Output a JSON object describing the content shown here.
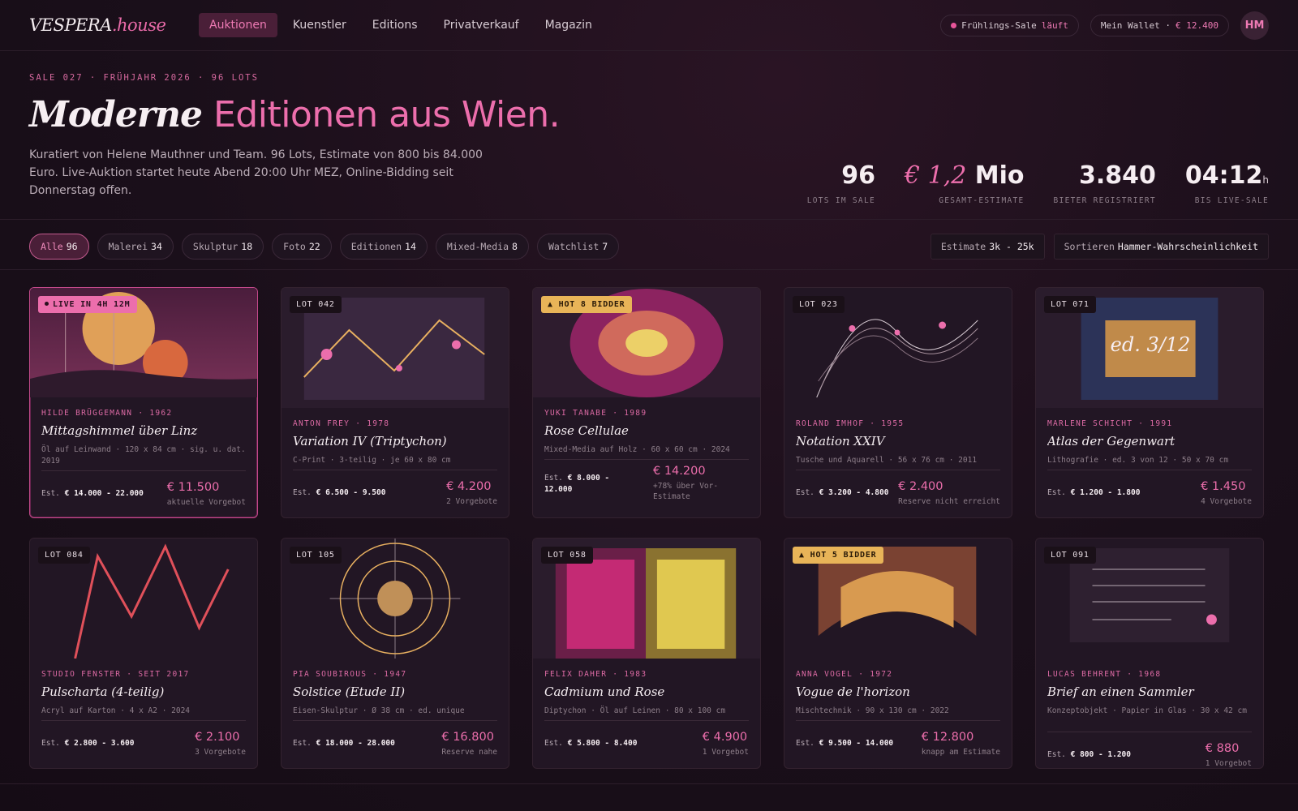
{
  "nav": {
    "logo_main": "VESPERA",
    "logo_accent": ".house",
    "links": [
      "Auktionen",
      "Kuenstler",
      "Editions",
      "Privatverkauf",
      "Magazin"
    ],
    "sale_status_label": "Frühlings-Sale",
    "sale_status_value": "läuft",
    "wallet_label": "Mein Wallet ·",
    "wallet_value": "€ 12.400",
    "avatar_initials": "HM"
  },
  "hero": {
    "eyebrow": "SALE 027 · FRÜHJAHR 2026 · 96 LOTS",
    "headline_a": "Moderne",
    "headline_b": "Editionen aus Wien.",
    "lede": "Kuratiert von Helene Mauthner und Team. 96 Lots, Estimate von 800 bis 84.000 Euro. Live-Auktion startet heute Abend 20:00 Uhr MEZ, Online-Bidding seit Donnerstag offen."
  },
  "stats": [
    {
      "value": "96",
      "label": "LOTS IM SALE"
    },
    {
      "value_italic": "€ 1,2",
      "value": "Mio",
      "label": "GESAMT-ESTIMATE"
    },
    {
      "value": "3.840",
      "label": "BIETER REGISTRIERT"
    },
    {
      "value": "04:12",
      "unit": "h",
      "label": "BIS LIVE-SALE"
    }
  ],
  "filters": [
    {
      "label": "Alle",
      "count": "96",
      "active": true
    },
    {
      "label": "Malerei",
      "count": "34"
    },
    {
      "label": "Skulptur",
      "count": "18"
    },
    {
      "label": "Foto",
      "count": "22"
    },
    {
      "label": "Editionen",
      "count": "14"
    },
    {
      "label": "Mixed-Media",
      "count": "8"
    },
    {
      "label": "Watchlist",
      "count": "7"
    }
  ],
  "controls": {
    "estimate_label": "Estimate",
    "estimate_value": "3k - 25k",
    "sort_label": "Sortieren",
    "sort_value": "Hammer-Wahrscheinlichkeit"
  },
  "lots": [
    {
      "badge": "LIVE IN 4H 12M",
      "artist": "HILDE BRÜGGEMANN · 1962",
      "title": "Mittagshimmel über Linz",
      "meta": "Öl auf Leinwand · 120 x 84 cm · sig. u. dat. 2019",
      "est_label": "Est.",
      "est": "€ 14.000 - 22.000",
      "price": "€ 11.500",
      "note": "aktuelle Vorgebot"
    },
    {
      "badge": "LOT 042",
      "artist": "ANTON FREY · 1978",
      "title": "Variation IV (Triptychon)",
      "meta": "C-Print · 3-teilig · je 60 x 80 cm",
      "est_label": "Est.",
      "est": "€ 6.500 - 9.500",
      "price": "€ 4.200",
      "note": "2 Vorgebote"
    },
    {
      "badge": "▲ HOT 8 BIDDER",
      "artist": "YUKI TANABE · 1989",
      "title": "Rose Cellulae",
      "meta": "Mixed-Media auf Holz · 60 x 60 cm · 2024",
      "est_label": "Est.",
      "est": "€ 8.000 - 12.000",
      "price": "€ 14.200",
      "note": "+78% über Vor-Estimate"
    },
    {
      "badge": "LOT 023",
      "artist": "ROLAND IMHOF · 1955",
      "title": "Notation XXIV",
      "meta": "Tusche und Aquarell · 56 x 76 cm · 2011",
      "est_label": "Est.",
      "est": "€ 3.200 - 4.800",
      "price": "€ 2.400",
      "note": "Reserve nicht erreicht"
    },
    {
      "badge": "LOT 071",
      "artist": "MARLENE SCHICHT · 1991",
      "title": "Atlas der Gegenwart",
      "meta": "Lithografie · ed. 3 von 12 · 50 x 70 cm",
      "est_label": "Est.",
      "est": "€ 1.200 - 1.800",
      "price": "€ 1.450",
      "note": "4 Vorgebote",
      "art_text": "ed. 3/12"
    },
    {
      "badge": "LOT 084",
      "artist": "STUDIO FENSTER · SEIT 2017",
      "title": "Pulscharta (4-teilig)",
      "meta": "Acryl auf Karton · 4 x A2 · 2024",
      "est_label": "Est.",
      "est": "€ 2.800 - 3.600",
      "price": "€ 2.100",
      "note": "3 Vorgebote"
    },
    {
      "badge": "LOT 105",
      "artist": "PIA SOUBIROUS · 1947",
      "title": "Solstice (Etude II)",
      "meta": "Eisen-Skulptur · Ø 38 cm · ed. unique",
      "est_label": "Est.",
      "est": "€ 18.000 - 28.000",
      "price": "€ 16.800",
      "note": "Reserve nahe"
    },
    {
      "badge": "LOT 058",
      "artist": "FELIX DAHER · 1983",
      "title": "Cadmium und Rose",
      "meta": "Diptychon · Öl auf Leinen · 80 x 100 cm",
      "est_label": "Est.",
      "est": "€ 5.800 - 8.400",
      "price": "€ 4.900",
      "note": "1 Vorgebot"
    },
    {
      "badge": "▲ HOT 5 BIDDER",
      "artist": "ANNA VOGEL · 1972",
      "title": "Vogue de l'horizon",
      "meta": "Mischtechnik · 90 x 130 cm · 2022",
      "est_label": "Est.",
      "est": "€ 9.500 - 14.000",
      "price": "€ 12.800",
      "note": "knapp am Estimate"
    },
    {
      "badge": "LOT 091",
      "artist": "LUCAS BEHRENT · 1968",
      "title": "Brief an einen Sammler",
      "meta": "Konzeptobjekt · Papier in Glas · 30 x 42 cm",
      "est_label": "Est.",
      "est": "€ 800 - 1.200",
      "price": "€ 880",
      "note": "1 Vorgebot"
    }
  ]
}
